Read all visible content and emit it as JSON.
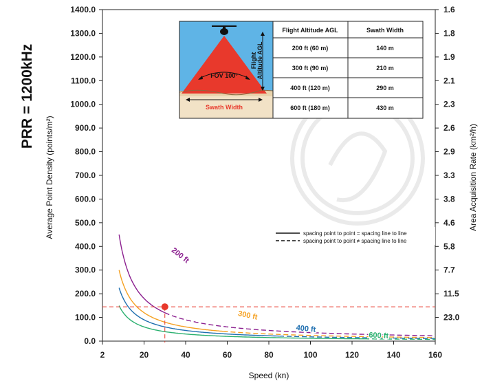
{
  "side_title": "PRR = 1200kHz",
  "colors": {
    "200ft": "#8b1f8f",
    "300ft": "#f5a020",
    "400ft": "#1f6fb0",
    "600ft": "#2ab06f",
    "marker": "#e8392c",
    "sky": "#5fb4e6",
    "beam": "#e8392c",
    "ground": "#f2e2c6"
  },
  "inset": {
    "fov_label": "FOV 100°",
    "altitude_label": [
      "Flight",
      "Altitude AGL"
    ],
    "swath_label": "Swath Width",
    "table": {
      "headers": [
        "Flight Altitude AGL",
        "Swath Width"
      ],
      "rows": [
        [
          "200 ft (60 m)",
          "140 m"
        ],
        [
          "300 ft (90 m)",
          "210 m"
        ],
        [
          "400 ft (120 m)",
          "290 m"
        ],
        [
          "600 ft (180 m)",
          "430 m"
        ]
      ]
    }
  },
  "chart_data": {
    "type": "line",
    "xlabel": "Speed (kn)",
    "ylabel": "Average Point Density (points/m²)",
    "y2label": "Area Acquisition Rate (km²/h)",
    "xlim": [
      0,
      160
    ],
    "ylim": [
      0,
      1400
    ],
    "x_ticks": [
      2,
      20,
      40,
      60,
      80,
      100,
      120,
      140,
      160
    ],
    "y_ticks": [
      "0.0",
      "100.0",
      "200.0",
      "300.0",
      "400.0",
      "500.0",
      "600.0",
      "700.0",
      "800.0",
      "900.0",
      "1000.0",
      "1100.0",
      "1200.0",
      "1300.0",
      "1400.0"
    ],
    "y2_ticks": [
      "23.0",
      "11.5",
      "7.7",
      "5.8",
      "4.6",
      "3.8",
      "3.3",
      "2.9",
      "2.6",
      "2.3",
      "2.1",
      "1.9",
      "1.8",
      "1.6"
    ],
    "legend": {
      "solid": "spacing point to point = spacing line to line",
      "dashed": "spacing point to point ≠ spacing line to line"
    },
    "series": [
      {
        "name": "200 ft",
        "k": 3600,
        "x_start": 8,
        "dash_from": 30,
        "label_pos": [
          33,
          380
        ],
        "label_rot": 38
      },
      {
        "name": "300 ft",
        "k": 2400,
        "x_start": 8,
        "dash_from": 58,
        "label_pos": [
          65,
          108
        ],
        "label_rot": 12
      },
      {
        "name": "400 ft",
        "k": 1800,
        "x_start": 8,
        "dash_from": 85,
        "label_pos": [
          93,
          47
        ],
        "label_rot": 6
      },
      {
        "name": "600 ft",
        "k": 1200,
        "x_start": 8,
        "dash_from": 126,
        "label_pos": [
          128,
          16
        ],
        "label_rot": 3
      }
    ],
    "marker": {
      "x": 30,
      "y": 145
    }
  }
}
